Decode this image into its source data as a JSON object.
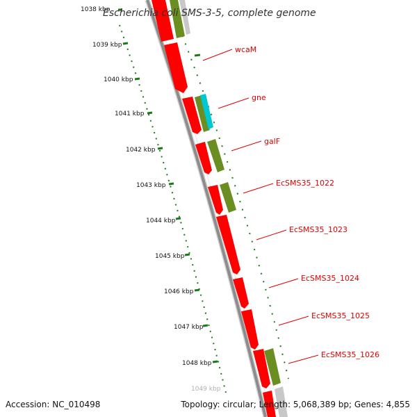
{
  "title": "Escherichia coli SMS-3-5, complete genome",
  "footer": {
    "accession": "Accession: NC_010498",
    "topology": "Topology: circular; Length: 5,068,389 bp; Genes: 4,855"
  },
  "kbp_ticks": [
    "1038 kbp",
    "1039 kbp",
    "1040 kbp",
    "1041 kbp",
    "1042 kbp",
    "1043 kbp",
    "1044 kbp",
    "1045 kbp",
    "1046 kbp",
    "1047 kbp",
    "1048 kbp",
    "1049 kbp"
  ],
  "gene_labels": [
    "wcaM",
    "gne",
    "galF",
    "EcSMS35_1022",
    "EcSMS35_1023",
    "EcSMS35_1024",
    "EcSMS35_1025",
    "EcSMS35_1026"
  ],
  "colors": {
    "cds_forward": "#ff0000",
    "cds_olive": "#6b8e23",
    "cds_cyan": "#00c8d2",
    "backbone": "#8c8c8c",
    "tick_green": "#1a7a1a",
    "label_red": "#e00000"
  }
}
